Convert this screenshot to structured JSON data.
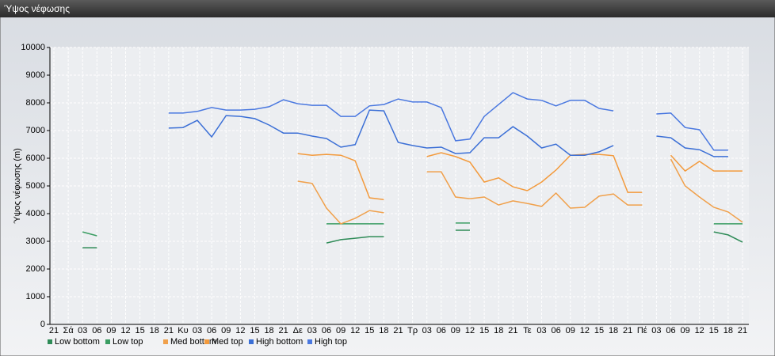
{
  "window_title": "Ύψος νέφωσης",
  "chart_data": {
    "type": "line",
    "y_label": "Ύψος νέφωσης (m)",
    "categories": [
      "21",
      "Σά",
      "03",
      "06",
      "09",
      "12",
      "15",
      "18",
      "21",
      "Κυ",
      "03",
      "06",
      "09",
      "12",
      "15",
      "18",
      "21",
      "Δε",
      "03",
      "06",
      "09",
      "12",
      "15",
      "18",
      "21",
      "Τρ",
      "03",
      "06",
      "09",
      "12",
      "15",
      "18",
      "21",
      "Τε",
      "03",
      "06",
      "09",
      "12",
      "15",
      "18",
      "21",
      "Πέ",
      "03",
      "06",
      "09",
      "12",
      "15",
      "18",
      "21"
    ],
    "ylim": [
      0,
      10000
    ],
    "yticks": [
      0,
      1000,
      2000,
      3000,
      4000,
      5000,
      6000,
      7000,
      8000,
      9000,
      10000
    ],
    "grid": true,
    "legend": "bottom",
    "series": [
      {
        "name": "Low bottom",
        "color": "#2e8b57",
        "values": [
          null,
          null,
          2770,
          2770,
          null,
          null,
          null,
          null,
          null,
          null,
          null,
          null,
          null,
          null,
          null,
          null,
          null,
          null,
          null,
          2940,
          3060,
          3110,
          3170,
          3170,
          null,
          null,
          null,
          null,
          3400,
          3400,
          null,
          null,
          null,
          null,
          null,
          null,
          null,
          null,
          null,
          null,
          null,
          null,
          null,
          null,
          null,
          null,
          3340,
          3230,
          2970
        ]
      },
      {
        "name": "Low top",
        "color": "#3a9d62",
        "values": [
          null,
          null,
          3340,
          3200,
          null,
          null,
          null,
          null,
          null,
          null,
          null,
          null,
          null,
          null,
          null,
          null,
          null,
          null,
          null,
          3630,
          3630,
          3630,
          3630,
          3630,
          null,
          null,
          null,
          null,
          3660,
          3660,
          null,
          null,
          null,
          null,
          null,
          null,
          null,
          null,
          null,
          null,
          null,
          null,
          null,
          null,
          null,
          null,
          3630,
          3630,
          3630
        ]
      },
      {
        "name": "Med bottom",
        "color": "#f0a04b",
        "values": [
          null,
          null,
          null,
          null,
          null,
          null,
          null,
          null,
          null,
          null,
          null,
          null,
          null,
          null,
          null,
          null,
          null,
          5170,
          5090,
          4200,
          3630,
          3830,
          4110,
          4030,
          null,
          null,
          5510,
          5510,
          4600,
          4540,
          4600,
          4310,
          4460,
          4370,
          4260,
          4740,
          4200,
          4230,
          4630,
          4710,
          4310,
          4310,
          null,
          5970,
          5000,
          4600,
          4230,
          4060,
          3690
        ]
      },
      {
        "name": "Med top",
        "color": "#f39a3c",
        "values": [
          null,
          null,
          null,
          null,
          null,
          null,
          null,
          null,
          null,
          null,
          null,
          null,
          null,
          null,
          null,
          null,
          null,
          6170,
          6110,
          6140,
          6110,
          5910,
          4570,
          4510,
          null,
          null,
          6060,
          6200,
          6060,
          5860,
          5140,
          5290,
          4970,
          4830,
          5140,
          5570,
          6110,
          6140,
          6140,
          6090,
          4770,
          4770,
          null,
          6110,
          5540,
          5890,
          5540,
          5540,
          5540
        ]
      },
      {
        "name": "High bottom",
        "color": "#3b6fd6",
        "values": [
          null,
          null,
          null,
          null,
          null,
          null,
          null,
          null,
          7090,
          7110,
          7370,
          6770,
          7540,
          7510,
          7430,
          7200,
          6910,
          6910,
          6800,
          6710,
          6400,
          6490,
          7740,
          7710,
          6570,
          6460,
          6370,
          6400,
          6170,
          6200,
          6740,
          6740,
          7140,
          6800,
          6370,
          6510,
          6110,
          6110,
          6230,
          6460,
          null,
          null,
          6800,
          6740,
          6370,
          6310,
          6060,
          6060,
          null
        ]
      },
      {
        "name": "High top",
        "color": "#4a78e0",
        "values": [
          null,
          null,
          null,
          null,
          null,
          null,
          null,
          null,
          7630,
          7630,
          7690,
          7830,
          7740,
          7740,
          7770,
          7860,
          8110,
          7970,
          7910,
          7910,
          7510,
          7510,
          7890,
          7940,
          8140,
          8030,
          8030,
          7830,
          6630,
          6690,
          7510,
          7940,
          8370,
          8140,
          8090,
          7890,
          8090,
          8090,
          7800,
          7710,
          null,
          null,
          7600,
          7630,
          7110,
          7030,
          6290,
          6290,
          null
        ]
      }
    ]
  }
}
